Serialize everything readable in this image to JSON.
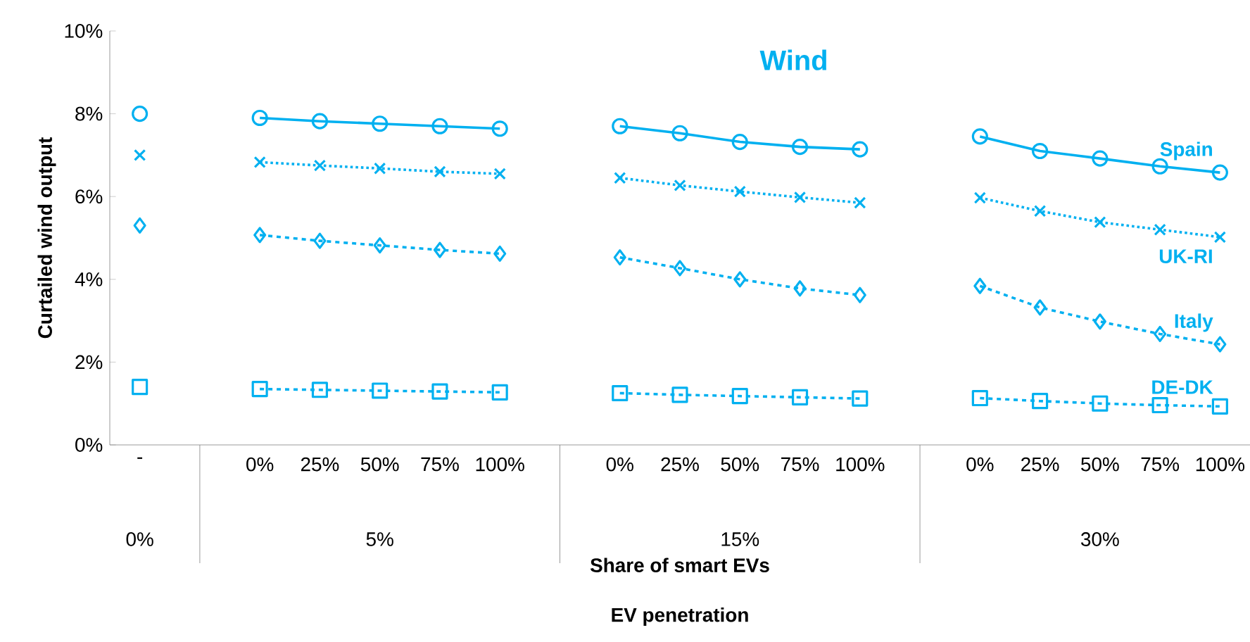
{
  "chart_data": {
    "type": "line",
    "title": "Wind",
    "xlabel": "Share of smart EVs",
    "ylabel": "Curtailed wind output",
    "categories": [
      "-",
      null,
      "0%",
      "25%",
      "50%",
      "75%",
      "100%",
      null,
      "0%",
      "25%",
      "50%",
      "75%",
      "100%",
      null,
      "0%",
      "25%",
      "50%",
      "75%",
      "100%"
    ],
    "annotations": [
      "0%",
      "5%",
      "15%",
      "30%",
      "EV penetration"
    ],
    "ylim": [
      0,
      10
    ],
    "yticks": [
      {
        "value": 0,
        "label": "0%"
      },
      {
        "value": 2,
        "label": "2%"
      },
      {
        "value": 4,
        "label": "4%"
      },
      {
        "value": 6,
        "label": "6%"
      },
      {
        "value": 8,
        "label": "8%"
      },
      {
        "value": 10,
        "label": "10%"
      }
    ],
    "series": [
      {
        "name": "Spain",
        "color": "#00b0f0",
        "marker": "circle",
        "line_style": "solid",
        "values": [
          8.0,
          null,
          7.9,
          7.82,
          7.76,
          7.7,
          7.64,
          null,
          7.7,
          7.53,
          7.32,
          7.2,
          7.14,
          null,
          7.45,
          7.1,
          6.92,
          6.73,
          6.58
        ]
      },
      {
        "name": "UK-RI",
        "color": "#00b0f0",
        "marker": "cross",
        "line_style": "dotted",
        "values": [
          7.0,
          null,
          6.83,
          6.75,
          6.68,
          6.6,
          6.55,
          null,
          6.45,
          6.27,
          6.12,
          5.98,
          5.85,
          null,
          5.97,
          5.65,
          5.38,
          5.2,
          5.02
        ]
      },
      {
        "name": "Italy",
        "color": "#00b0f0",
        "marker": "diamond",
        "line_style": "dashed",
        "values": [
          5.3,
          null,
          5.07,
          4.93,
          4.82,
          4.71,
          4.62,
          null,
          4.53,
          4.27,
          4.0,
          3.78,
          3.62,
          null,
          3.84,
          3.32,
          2.98,
          2.68,
          2.43
        ]
      },
      {
        "name": "DE-DK",
        "color": "#00b0f0",
        "marker": "square",
        "line_style": "dashed",
        "values": [
          1.4,
          null,
          1.35,
          1.33,
          1.31,
          1.29,
          1.27,
          null,
          1.25,
          1.21,
          1.18,
          1.15,
          1.12,
          null,
          1.13,
          1.06,
          1.0,
          0.96,
          0.93
        ]
      }
    ]
  }
}
